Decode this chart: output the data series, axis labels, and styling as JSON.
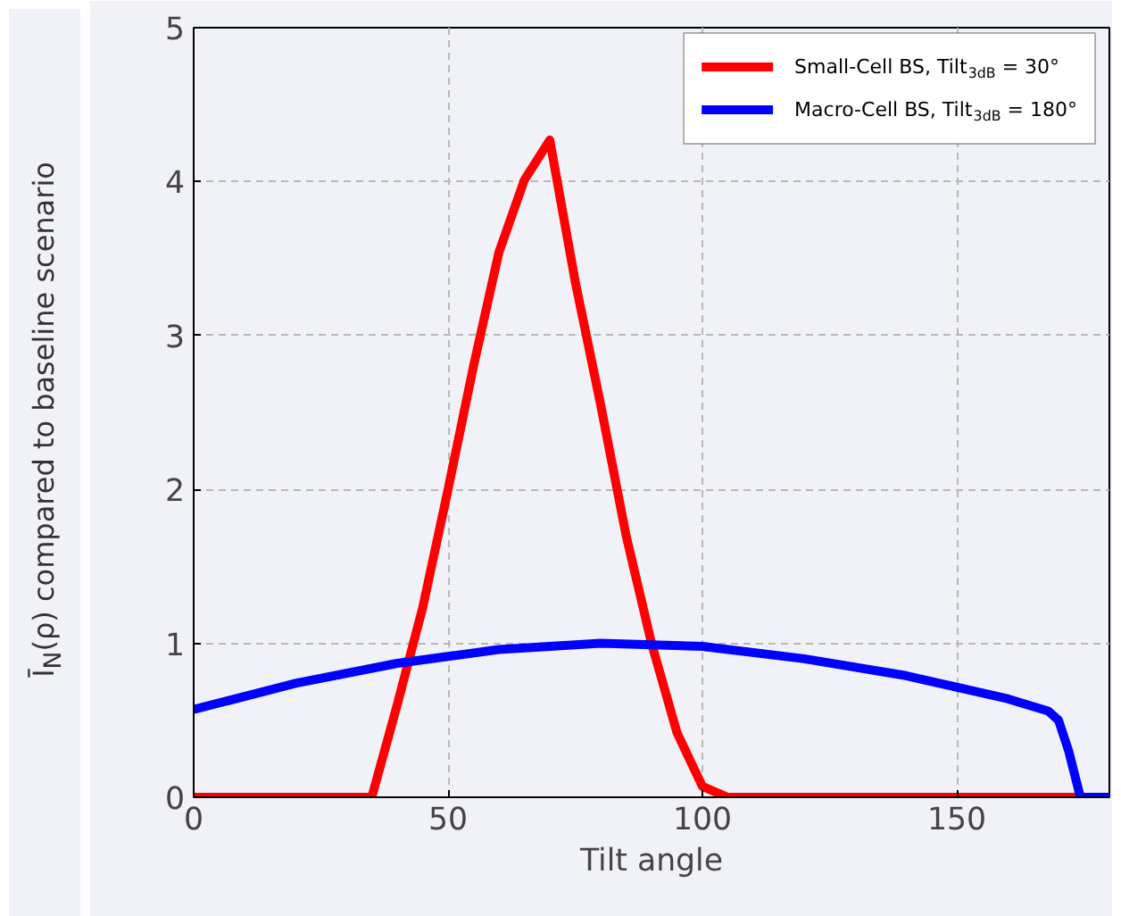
{
  "chart_data": {
    "type": "line",
    "xlabel": "Tilt angle",
    "ylabel": "Ī$_{N}$(ρ) compared to baseline scenario",
    "xlim": [
      0,
      180
    ],
    "ylim": [
      0,
      5
    ],
    "xticks": [
      0,
      50,
      100,
      150
    ],
    "yticks": [
      0,
      1,
      2,
      3,
      4,
      5
    ],
    "grid": true,
    "legend": "top right",
    "line_style": "solid",
    "marker": "none",
    "series": [
      {
        "name": "Small-Cell BS, Tilt$_{3dB}$ = 30°",
        "color": "#ff0000",
        "x": [
          0,
          35,
          40,
          45,
          50,
          55,
          60,
          65,
          70,
          75,
          80,
          85,
          90,
          95,
          100,
          105,
          180
        ],
        "values": [
          0,
          0,
          0.6,
          1.23,
          2.0,
          2.8,
          3.54,
          4.01,
          4.27,
          3.35,
          2.55,
          1.7,
          1.0,
          0.42,
          0.07,
          0,
          0
        ]
      },
      {
        "name": "Macro-Cell BS, Tilt$_{3dB}$ = 180°",
        "color": "#0000ff",
        "x": [
          0,
          20,
          40,
          60,
          80,
          100,
          120,
          140,
          160,
          168,
          170,
          172,
          174.3,
          180
        ],
        "values": [
          0.57,
          0.74,
          0.87,
          0.96,
          1.0,
          0.98,
          0.9,
          0.79,
          0.64,
          0.56,
          0.5,
          0.3,
          0,
          0
        ]
      }
    ]
  }
}
